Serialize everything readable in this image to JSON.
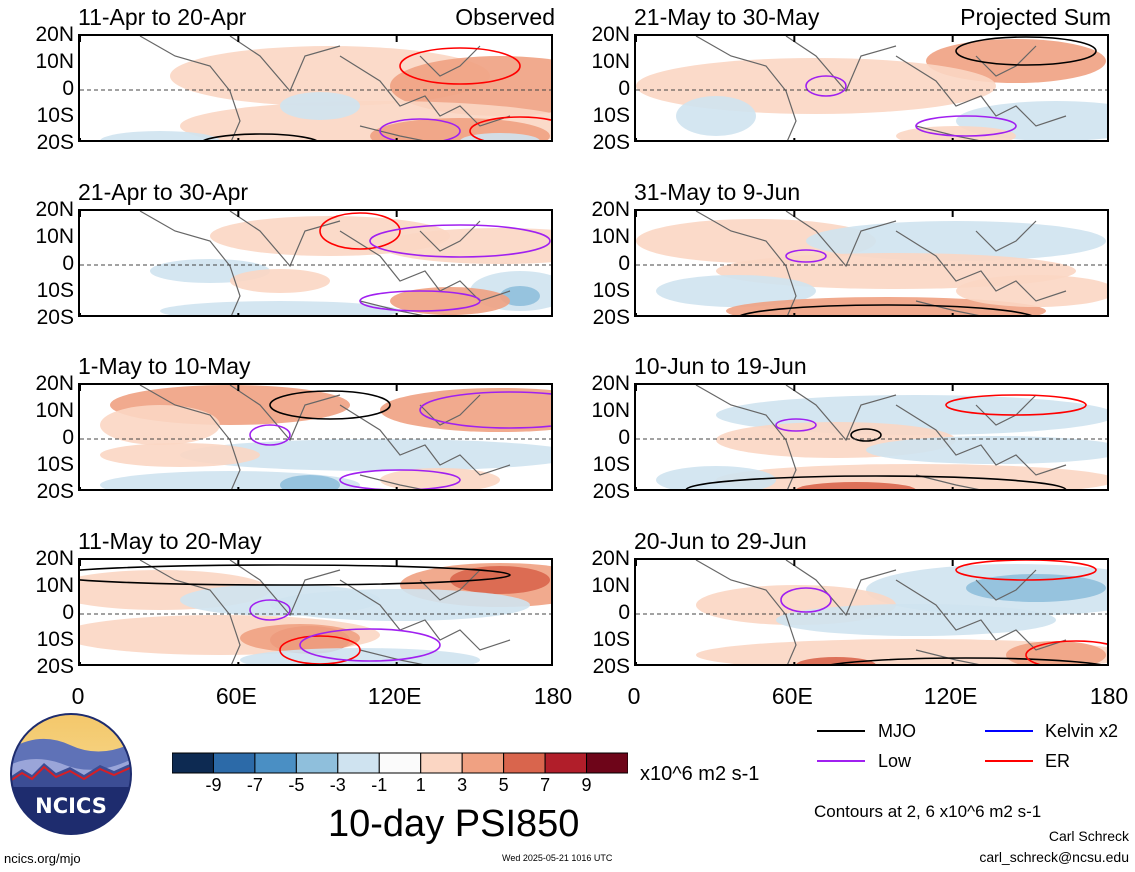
{
  "panels": [
    {
      "id": "p1",
      "title": "11-Apr to 20-Apr",
      "tag": "Observed"
    },
    {
      "id": "p2",
      "title": "21-Apr to 30-Apr",
      "tag": ""
    },
    {
      "id": "p3",
      "title": "1-May to 10-May",
      "tag": ""
    },
    {
      "id": "p4",
      "title": "11-May to 20-May",
      "tag": ""
    },
    {
      "id": "p5",
      "title": "21-May to 30-May",
      "tag": "Projected Sum"
    },
    {
      "id": "p6",
      "title": "31-May to 9-Jun",
      "tag": ""
    },
    {
      "id": "p7",
      "title": "10-Jun to 19-Jun",
      "tag": ""
    },
    {
      "id": "p8",
      "title": "20-Jun to 29-Jun",
      "tag": ""
    }
  ],
  "lat_labels": [
    "20N",
    "10N",
    "0",
    "10S",
    "20S"
  ],
  "lon_labels": [
    "0",
    "60E",
    "120E",
    "180"
  ],
  "colorbar": {
    "ticks": [
      "-9",
      "-7",
      "-5",
      "-3",
      "-1",
      "1",
      "3",
      "5",
      "7",
      "9"
    ],
    "units": "x10^6 m2 s-1",
    "colors": [
      "#0d2a52",
      "#2c6aa8",
      "#4a8fc4",
      "#8fbfdc",
      "#cfe3f0",
      "#fbfbfb",
      "#fbd6c3",
      "#f0a182",
      "#d9654d",
      "#b11e2a",
      "#6e0519"
    ]
  },
  "chart_title": "10-day PSI850",
  "legend": {
    "items": [
      {
        "label": "MJO",
        "color": "#000000"
      },
      {
        "label": "Kelvin x2",
        "color": "#0000ff"
      },
      {
        "label": "Low",
        "color": "#a020f0"
      },
      {
        "label": "ER",
        "color": "#ff0000"
      }
    ],
    "contours_note": "Contours at 2, 6 x10^6 m2 s-1"
  },
  "credits": {
    "author": "Carl Schreck",
    "email": "carl_schreck@ncsu.edu",
    "site": "ncics.org/mjo",
    "timestamp": "Wed 2025-05-21 1016 UTC",
    "logo_text": "NCICS"
  },
  "chart_data": {
    "type": "heatmap",
    "variable": "10-day PSI850",
    "units": "x10^6 m2 s-1",
    "x_range": [
      "0",
      "180"
    ],
    "y_range": [
      "20S",
      "20N"
    ],
    "color_levels": [
      -9,
      -7,
      -5,
      -3,
      -1,
      1,
      3,
      5,
      7,
      9
    ],
    "contour_levels": [
      2,
      6
    ],
    "contour_series": [
      "MJO",
      "Kelvin x2",
      "Low",
      "ER"
    ]
  }
}
